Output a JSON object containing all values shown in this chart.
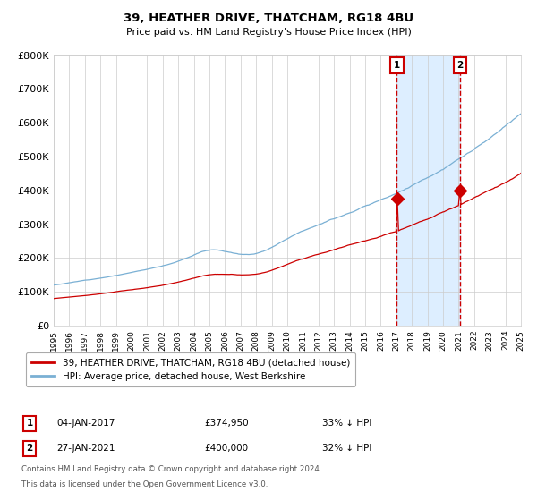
{
  "title": "39, HEATHER DRIVE, THATCHAM, RG18 4BU",
  "subtitle": "Price paid vs. HM Land Registry's House Price Index (HPI)",
  "legend_label_red": "39, HEATHER DRIVE, THATCHAM, RG18 4BU (detached house)",
  "legend_label_blue": "HPI: Average price, detached house, West Berkshire",
  "annotation1_label": "1",
  "annotation1_date": "04-JAN-2017",
  "annotation1_price": "£374,950",
  "annotation1_pct": "33% ↓ HPI",
  "annotation2_label": "2",
  "annotation2_date": "27-JAN-2021",
  "annotation2_price": "£400,000",
  "annotation2_pct": "32% ↓ HPI",
  "footnote1": "Contains HM Land Registry data © Crown copyright and database right 2024.",
  "footnote2": "This data is licensed under the Open Government Licence v3.0.",
  "red_color": "#cc0000",
  "blue_color": "#7ab0d4",
  "vline_color": "#cc0000",
  "shade_color": "#ddeeff",
  "grid_color": "#cccccc",
  "bg_color": "#ffffff",
  "ylim": [
    0,
    800000
  ],
  "yticks": [
    0,
    100000,
    200000,
    300000,
    400000,
    500000,
    600000,
    700000,
    800000
  ],
  "ytick_labels": [
    "£0",
    "£100K",
    "£200K",
    "£300K",
    "£400K",
    "£500K",
    "£600K",
    "£700K",
    "£800K"
  ],
  "year_start": 1995,
  "year_end": 2025,
  "annotation1_year": 2017.04,
  "annotation2_year": 2021.08,
  "annotation1_value_red": 374950,
  "annotation2_value_red": 400000
}
